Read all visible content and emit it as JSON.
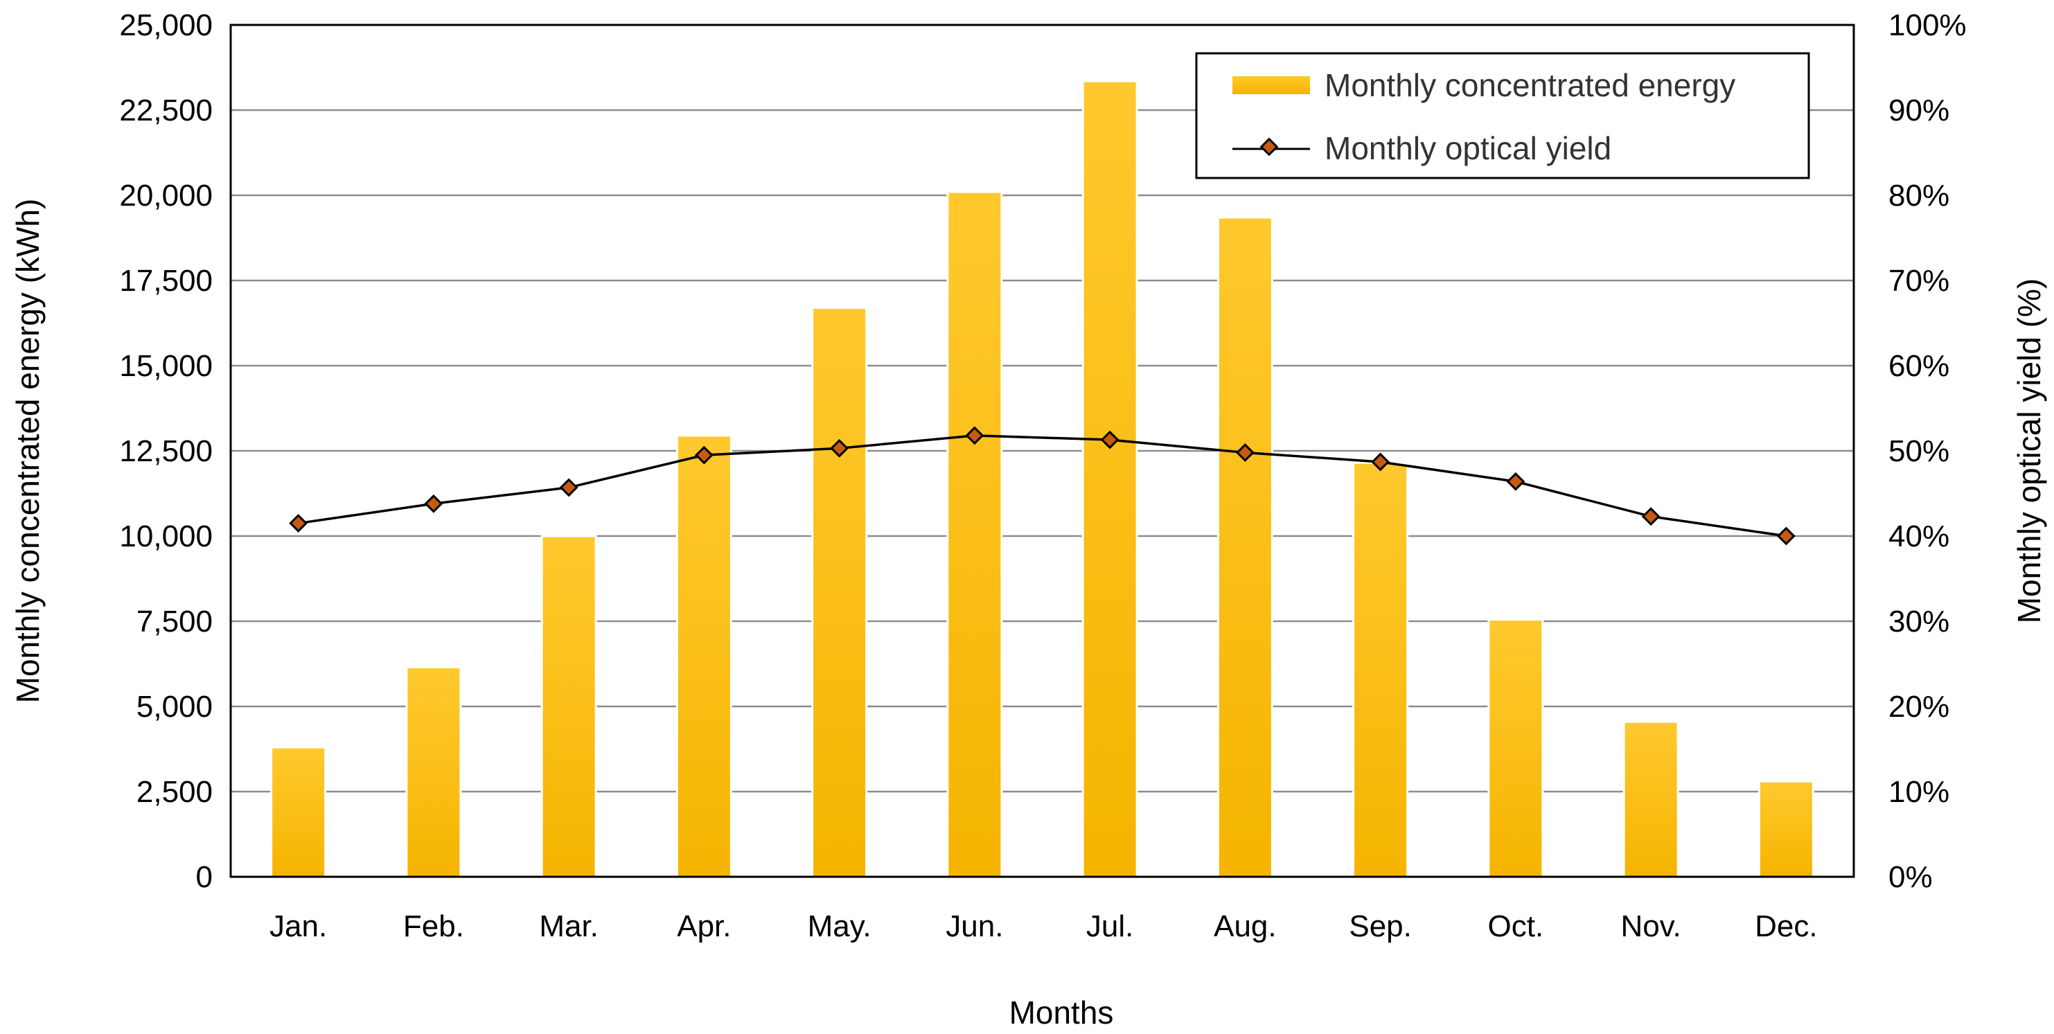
{
  "chart_data": {
    "type": "bar",
    "categories": [
      "Jan.",
      "Feb.",
      "Mar.",
      "Apr.",
      "May.",
      "Jun.",
      "Jul.",
      "Aug.",
      "Sep.",
      "Oct.",
      "Nov.",
      "Dec."
    ],
    "series": [
      {
        "name": "Monthly concentrated energy",
        "type": "bar",
        "axis": "left",
        "color": "#FFC000",
        "values": [
          3800,
          6150,
          10000,
          12950,
          16700,
          20100,
          23350,
          19350,
          12150,
          7550,
          4550,
          2800
        ]
      },
      {
        "name": "Monthly optical yield",
        "type": "line",
        "axis": "right",
        "color": "#000000",
        "marker_color": "#C55A11",
        "values": [
          41.5,
          43.8,
          45.7,
          49.5,
          50.3,
          51.8,
          51.3,
          49.8,
          48.7,
          46.4,
          42.3,
          40.0
        ]
      }
    ],
    "xlabel": "Months",
    "ylabel": "Monthly concentrated energy (kWh)",
    "y2label": "Monthly optical yield (%)",
    "ylim": [
      0,
      25000
    ],
    "y2lim": [
      0,
      100
    ],
    "yticks": [
      "0",
      "2,500",
      "5,000",
      "7,500",
      "10,000",
      "12,500",
      "15,000",
      "17,500",
      "20,000",
      "22,500",
      "25,000"
    ],
    "y2ticks": [
      "0%",
      "10%",
      "20%",
      "30%",
      "40%",
      "50%",
      "60%",
      "70%",
      "80%",
      "90%",
      "100%"
    ],
    "grid": true,
    "legend_position": "top-right"
  }
}
